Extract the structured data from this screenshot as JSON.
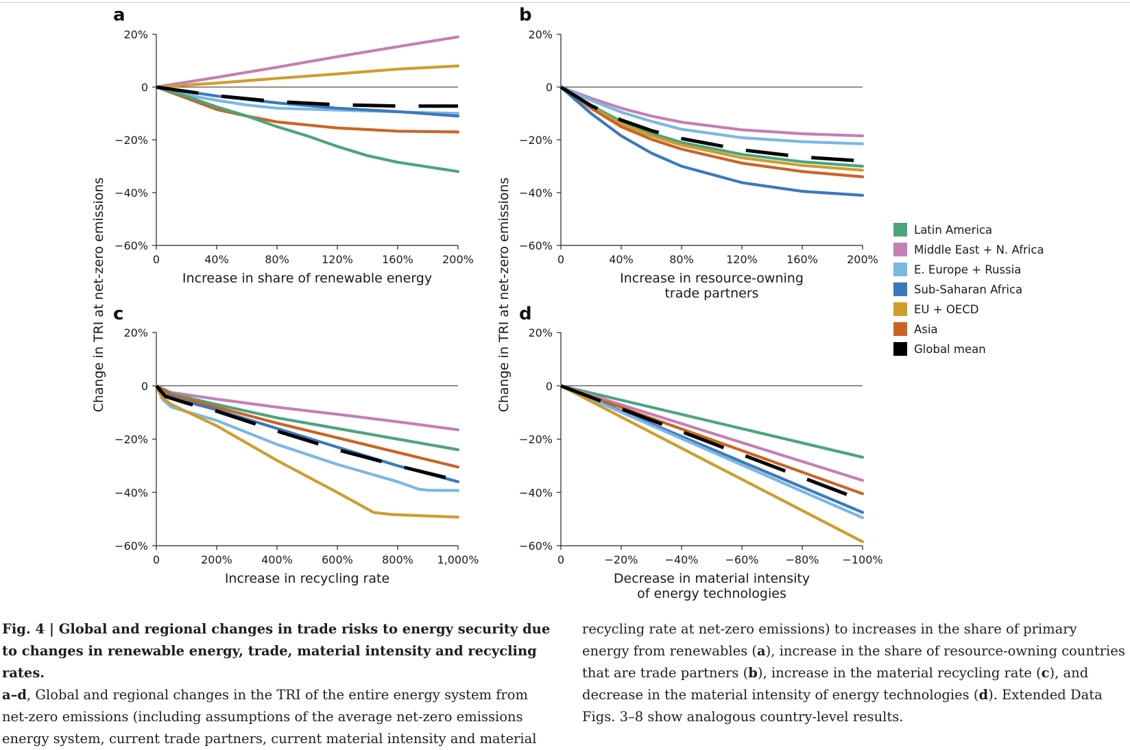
{
  "colors": {
    "latin_america": "#4aa57d",
    "mena": "#c47fb4",
    "eeurope": "#7ab8e2",
    "ssa": "#3c78bd",
    "eu_oecd": "#cf9d2c",
    "asia": "#cc6323",
    "global": "#000000"
  },
  "figure": {
    "y_axis_label": "Change in TRI at net-zero emissions",
    "y_ticks": [
      "20%",
      "0",
      "−20%",
      "−40%",
      "−60%"
    ]
  },
  "legend": [
    {
      "key": "latin_america",
      "label": "Latin America"
    },
    {
      "key": "mena",
      "label": "Middle East + N. Africa"
    },
    {
      "key": "eeurope",
      "label": "E. Europe + Russia"
    },
    {
      "key": "ssa",
      "label": "Sub-Saharan Africa"
    },
    {
      "key": "eu_oecd",
      "label": "EU + OECD"
    },
    {
      "key": "asia",
      "label": "Asia"
    },
    {
      "key": "global",
      "label": "Global mean"
    }
  ],
  "chart_data": [
    {
      "panel": "a",
      "type": "line",
      "xlabel": [
        "Increase in share of renewable energy"
      ],
      "x_ticks": [
        "0",
        "40%",
        "80%",
        "120%",
        "160%",
        "200%"
      ],
      "xlim": [
        0,
        200
      ],
      "ylim": [
        -60,
        20
      ],
      "series": [
        {
          "key": "mena",
          "name": "Middle East + N. Africa",
          "x": [
            0,
            40,
            80,
            120,
            160,
            200
          ],
          "y": [
            0,
            3.7,
            7.5,
            11.5,
            15.3,
            19
          ]
        },
        {
          "key": "eu_oecd",
          "name": "EU + OECD",
          "x": [
            0,
            40,
            80,
            120,
            160,
            200
          ],
          "y": [
            0,
            1.5,
            3.3,
            5,
            6.8,
            8
          ]
        },
        {
          "key": "eeurope",
          "name": "E. Europe + Russia",
          "x": [
            0,
            20,
            40,
            60,
            80,
            120,
            160,
            200
          ],
          "y": [
            0,
            -3,
            -5,
            -6.8,
            -8,
            -8.7,
            -9.4,
            -10
          ]
        },
        {
          "key": "ssa",
          "name": "Sub-Saharan Africa",
          "x": [
            0,
            40,
            80,
            120,
            160,
            200
          ],
          "y": [
            0,
            -3.4,
            -6,
            -8,
            -9.3,
            -11
          ]
        },
        {
          "key": "asia",
          "name": "Asia",
          "x": [
            0,
            20,
            40,
            60,
            80,
            120,
            160,
            200
          ],
          "y": [
            0,
            -4.2,
            -8.5,
            -11,
            -13.2,
            -15.5,
            -16.7,
            -17
          ]
        },
        {
          "key": "latin_america",
          "name": "Latin America",
          "x": [
            0,
            20,
            40,
            60,
            80,
            100,
            120,
            140,
            160,
            200
          ],
          "y": [
            0,
            -3.5,
            -7.5,
            -11,
            -15,
            -18.5,
            -22.5,
            -26,
            -28.5,
            -32
          ]
        },
        {
          "key": "global",
          "name": "Global mean",
          "dashed": true,
          "x": [
            0,
            40,
            80,
            120,
            160,
            200
          ],
          "y": [
            0,
            -3.3,
            -5.5,
            -6.7,
            -7.2,
            -7.2
          ]
        }
      ]
    },
    {
      "panel": "b",
      "type": "line",
      "xlabel": [
        "Increase in resource-owning",
        "trade partners"
      ],
      "x_ticks": [
        "0",
        "40%",
        "80%",
        "120%",
        "160%",
        "200%"
      ],
      "xlim": [
        0,
        200
      ],
      "ylim": [
        -60,
        20
      ],
      "series": [
        {
          "key": "mena",
          "name": "Middle East + N. Africa",
          "x": [
            0,
            20,
            40,
            60,
            80,
            120,
            160,
            200
          ],
          "y": [
            0,
            -4.2,
            -8,
            -11,
            -13.3,
            -16.2,
            -17.7,
            -18.5
          ]
        },
        {
          "key": "eeurope",
          "name": "E. Europe + Russia",
          "x": [
            0,
            20,
            40,
            60,
            80,
            120,
            160,
            200
          ],
          "y": [
            0,
            -5,
            -9.5,
            -13,
            -16,
            -19.2,
            -20.7,
            -21.5
          ]
        },
        {
          "key": "latin_america",
          "name": "Latin America",
          "x": [
            0,
            20,
            40,
            60,
            80,
            120,
            160,
            200
          ],
          "y": [
            0,
            -7,
            -13,
            -17.5,
            -21,
            -25.5,
            -28.3,
            -30
          ]
        },
        {
          "key": "eu_oecd",
          "name": "EU + OECD",
          "x": [
            0,
            20,
            40,
            60,
            80,
            120,
            160,
            200
          ],
          "y": [
            0,
            -7.5,
            -14,
            -18.5,
            -22,
            -26.8,
            -29.7,
            -31.5
          ]
        },
        {
          "key": "asia",
          "name": "Asia",
          "x": [
            0,
            20,
            40,
            60,
            80,
            120,
            160,
            200
          ],
          "y": [
            0,
            -8,
            -15,
            -19.8,
            -23.5,
            -28.8,
            -32,
            -34
          ]
        },
        {
          "key": "ssa",
          "name": "Sub-Saharan Africa",
          "x": [
            0,
            20,
            40,
            60,
            80,
            120,
            160,
            200
          ],
          "y": [
            0,
            -10,
            -18.5,
            -25,
            -30,
            -36.2,
            -39.5,
            -41
          ]
        },
        {
          "key": "global",
          "name": "Global mean",
          "dashed": true,
          "x": [
            0,
            20,
            40,
            60,
            80,
            120,
            160,
            200
          ],
          "y": [
            0,
            -7,
            -12.5,
            -16.5,
            -19.5,
            -23.8,
            -26.5,
            -28
          ]
        }
      ]
    },
    {
      "panel": "c",
      "type": "line",
      "xlabel": [
        "Increase in recycling rate"
      ],
      "x_ticks": [
        "0",
        "200%",
        "400%",
        "600%",
        "800%",
        "1,000%"
      ],
      "xlim": [
        0,
        1000
      ],
      "ylim": [
        -60,
        20
      ],
      "series": [
        {
          "key": "mena",
          "name": "Middle East + N. Africa",
          "x": [
            0,
            50,
            200,
            400,
            600,
            800,
            1000
          ],
          "y": [
            0,
            -2.5,
            -5,
            -8,
            -10.7,
            -13.5,
            -16.5
          ]
        },
        {
          "key": "latin_america",
          "name": "Latin America",
          "x": [
            0,
            50,
            200,
            400,
            600,
            800,
            1000
          ],
          "y": [
            0,
            -3,
            -7,
            -12,
            -16,
            -20,
            -24
          ]
        },
        {
          "key": "asia",
          "name": "Asia",
          "x": [
            0,
            50,
            200,
            400,
            600,
            800,
            1000
          ],
          "y": [
            0,
            -3.5,
            -8,
            -14,
            -19.5,
            -25,
            -30.5
          ]
        },
        {
          "key": "ssa",
          "name": "Sub-Saharan Africa",
          "x": [
            0,
            30,
            100,
            200,
            400,
            600,
            800,
            1000
          ],
          "y": [
            0,
            -3.5,
            -6,
            -9,
            -16,
            -23,
            -30,
            -36
          ]
        },
        {
          "key": "eeurope",
          "name": "E. Europe + Russia",
          "x": [
            0,
            20,
            50,
            200,
            400,
            600,
            800,
            870,
            900,
            1000
          ],
          "y": [
            0,
            -5,
            -8,
            -13,
            -22,
            -29.5,
            -36,
            -38.8,
            -39.2,
            -39.3
          ]
        },
        {
          "key": "eu_oecd",
          "name": "EU + OECD",
          "x": [
            0,
            20,
            50,
            200,
            400,
            600,
            720,
            780,
            1000
          ],
          "y": [
            0,
            -4.5,
            -7,
            -15,
            -28,
            -40,
            -47.5,
            -48.3,
            -49.3
          ]
        },
        {
          "key": "global",
          "name": "Global mean",
          "dashed": true,
          "x": [
            0,
            30,
            100,
            200,
            400,
            600,
            800,
            1000
          ],
          "y": [
            0,
            -4,
            -6.5,
            -9.5,
            -17,
            -24,
            -30,
            -35.5
          ]
        }
      ]
    },
    {
      "panel": "d",
      "type": "line",
      "xlabel": [
        "Decrease in material intensity",
        "of energy technologies"
      ],
      "x_ticks": [
        "0",
        "−20%",
        "−40%",
        "−60%",
        "−80%",
        "−100%"
      ],
      "xlim": [
        0,
        -100
      ],
      "ylim": [
        -60,
        20
      ],
      "series": [
        {
          "key": "latin_america",
          "name": "Latin America",
          "x": [
            0,
            -100
          ],
          "y": [
            0,
            -26.8
          ]
        },
        {
          "key": "mena",
          "name": "Middle East + N. Africa",
          "x": [
            0,
            -100
          ],
          "y": [
            0,
            -35.5
          ]
        },
        {
          "key": "asia",
          "name": "Asia",
          "x": [
            0,
            -100
          ],
          "y": [
            0,
            -40.5
          ]
        },
        {
          "key": "ssa",
          "name": "Sub-Saharan Africa",
          "x": [
            0,
            -100
          ],
          "y": [
            0,
            -47.5
          ]
        },
        {
          "key": "eeurope",
          "name": "E. Europe + Russia",
          "x": [
            0,
            -100
          ],
          "y": [
            0,
            -49.5
          ]
        },
        {
          "key": "eu_oecd",
          "name": "EU + OECD",
          "x": [
            0,
            -100
          ],
          "y": [
            0,
            -58.5
          ]
        },
        {
          "key": "global",
          "name": "Global mean",
          "dashed": true,
          "x": [
            0,
            -100
          ],
          "y": [
            0,
            -43
          ]
        }
      ]
    }
  ],
  "caption": {
    "fig_label": "Fig. 4 | ",
    "title": "Global and regional changes in trade risks to energy security due to changes in renewable energy, trade, material intensity and recycling rates.",
    "panel_range": "a–d",
    "left_text": ", Global and regional changes in the TRI of the entire energy system from net-zero emissions (including assumptions of the average net-zero emissions energy system, current trade partners, current material intensity and material",
    "right_1": "recycling rate at net-zero emissions) to increases in the share of primary energy from renewables (",
    "ref_a": "a",
    "right_2": "), increase in the share of resource-owning countries that are trade partners (",
    "ref_b": "b",
    "right_3": "), increase in the material recycling rate (",
    "ref_c": "c",
    "right_4": "), and decrease in the material intensity of energy technologies (",
    "ref_d": "d",
    "right_5": "). Extended Data Figs. 3–8 show analogous country-level results."
  }
}
